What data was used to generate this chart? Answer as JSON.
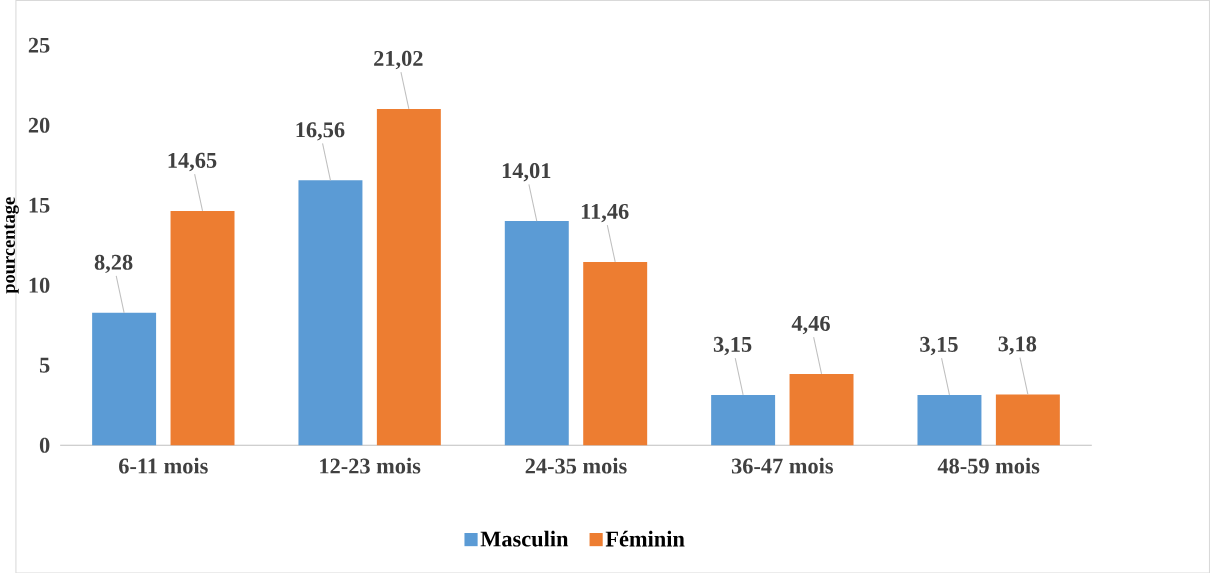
{
  "chart_data": {
    "type": "bar",
    "ylabel": "pourcentage",
    "categories": [
      "6-11 mois",
      "12-23 mois",
      "24-35 mois",
      "36-47 mois",
      "48-59 mois"
    ],
    "series": [
      {
        "name": "Masculin",
        "color": "#5b9bd5",
        "values": [
          8.28,
          16.56,
          14.01,
          3.15,
          3.15
        ],
        "value_labels": [
          "8,28",
          "16,56",
          "14,01",
          "3,15",
          "3,15"
        ]
      },
      {
        "name": "Féminin",
        "color": "#ed7d31",
        "values": [
          14.65,
          21.02,
          11.46,
          4.46,
          3.18
        ],
        "value_labels": [
          "14,65",
          "21,02",
          "11,46",
          "4,46",
          "3,18"
        ]
      }
    ],
    "ylim": [
      0,
      25
    ],
    "yticks": [
      0,
      5,
      10,
      15,
      20,
      25
    ],
    "legend": "bottom"
  }
}
